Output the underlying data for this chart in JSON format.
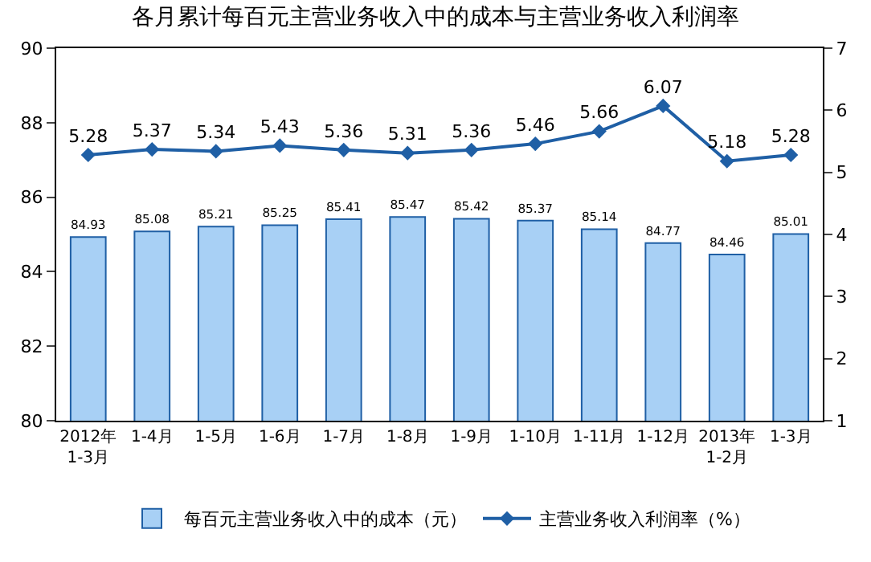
{
  "chart_data": {
    "type": "bar",
    "title": "各月累计每百元主营业务收入中的成本与主营业务收入利润率",
    "categories": [
      "2012年\n1-3月",
      "1-4月",
      "1-5月",
      "1-6月",
      "1-7月",
      "1-8月",
      "1-9月",
      "1-10月",
      "1-11月",
      "1-12月",
      "2013年\n1-2月",
      "1-3月"
    ],
    "series": [
      {
        "name": "每百元主营业务收入中的成本（元）",
        "color": "#a8d0f5",
        "values": [
          84.93,
          85.08,
          85.21,
          85.25,
          85.41,
          85.47,
          85.42,
          85.37,
          85.14,
          84.77,
          84.46,
          85.01
        ]
      },
      {
        "name": "主营业务收入利润率（%）",
        "type": "line",
        "axis": "y2",
        "color": "#1f5fa5",
        "marker": "diamond",
        "values": [
          5.28,
          5.37,
          5.34,
          5.43,
          5.36,
          5.31,
          5.36,
          5.46,
          5.66,
          6.07,
          5.18,
          5.28
        ]
      }
    ],
    "ylim": [
      80,
      90
    ],
    "yticks": [
      80,
      82,
      84,
      86,
      88,
      90
    ],
    "y2lim": [
      1,
      7
    ],
    "y2ticks": [
      1,
      2,
      3,
      4,
      5,
      6,
      7
    ],
    "data_labels": true,
    "grid": false,
    "legend": "bottom"
  }
}
